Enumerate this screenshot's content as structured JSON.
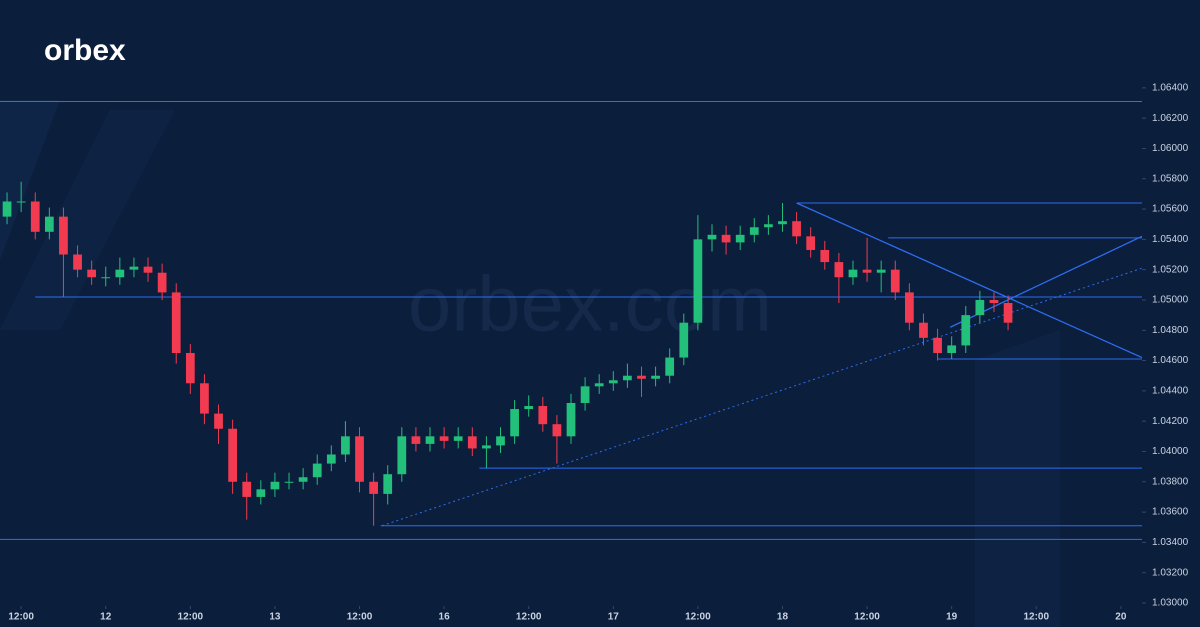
{
  "logo": "orbex",
  "watermark": "orbex.com",
  "chart_data": {
    "type": "candlestick",
    "x": [
      -2,
      0,
      2,
      4,
      6,
      8,
      10,
      12,
      14,
      16,
      18,
      20,
      22,
      24,
      26,
      28,
      30,
      32,
      34,
      36,
      38,
      40,
      42,
      44,
      46,
      48,
      50,
      52,
      54,
      56,
      58,
      60,
      62,
      64,
      66,
      68,
      70,
      72,
      74,
      76,
      78,
      80,
      82,
      84,
      86,
      88,
      90,
      92,
      94,
      96,
      98,
      100,
      102,
      104,
      106,
      108,
      110,
      112,
      114,
      116,
      118,
      120,
      122,
      124,
      126,
      128,
      130,
      132,
      134,
      136,
      138,
      140
    ],
    "open": [
      1.0555,
      1.0565,
      1.0565,
      1.0545,
      1.0555,
      1.053,
      1.052,
      1.0515,
      1.0515,
      1.052,
      1.0522,
      1.0518,
      1.0505,
      1.0465,
      1.0445,
      1.0425,
      1.0415,
      1.038,
      1.037,
      1.0375,
      1.038,
      1.038,
      1.0383,
      1.0392,
      1.0398,
      1.041,
      1.038,
      1.0372,
      1.0385,
      1.041,
      1.0405,
      1.041,
      1.0407,
      1.041,
      1.0402,
      1.0404,
      1.041,
      1.0428,
      1.043,
      1.0418,
      1.041,
      1.0432,
      1.0443,
      1.0445,
      1.0447,
      1.045,
      1.0448,
      1.045,
      1.0462,
      1.0485,
      1.054,
      1.0543,
      1.0538,
      1.0543,
      1.0548,
      1.055,
      1.0552,
      1.0542,
      1.0533,
      1.0525,
      1.0515,
      1.052,
      1.0518,
      1.052,
      1.0505,
      1.0485,
      1.0475,
      1.0465,
      1.047,
      1.049,
      1.05,
      1.0498
    ],
    "high": [
      1.0571,
      1.0578,
      1.0571,
      1.0561,
      1.0561,
      1.0536,
      1.0526,
      1.0522,
      1.0528,
      1.0528,
      1.0528,
      1.0524,
      1.0511,
      1.0471,
      1.0451,
      1.0431,
      1.0421,
      1.0386,
      1.0381,
      1.0386,
      1.0386,
      1.0389,
      1.0398,
      1.0404,
      1.042,
      1.0416,
      1.0386,
      1.0391,
      1.0416,
      1.0416,
      1.0416,
      1.0416,
      1.0416,
      1.0416,
      1.041,
      1.0416,
      1.0434,
      1.0437,
      1.0436,
      1.0424,
      1.0438,
      1.0449,
      1.0451,
      1.0453,
      1.0458,
      1.0456,
      1.0456,
      1.0468,
      1.0491,
      1.0556,
      1.055,
      1.0549,
      1.0549,
      1.0554,
      1.0556,
      1.0564,
      1.0558,
      1.0548,
      1.0539,
      1.0531,
      1.0526,
      1.0541,
      1.0526,
      1.0526,
      1.0511,
      1.0491,
      1.0481,
      1.0476,
      1.0496,
      1.0506,
      1.0505,
      1.0503
    ],
    "low": [
      1.055,
      1.0558,
      1.054,
      1.054,
      1.0502,
      1.0515,
      1.051,
      1.0509,
      1.051,
      1.0515,
      1.0512,
      1.05,
      1.0458,
      1.0438,
      1.0418,
      1.0405,
      1.0372,
      1.0355,
      1.0365,
      1.037,
      1.0375,
      1.0375,
      1.0378,
      1.0387,
      1.0393,
      1.0373,
      1.0351,
      1.0365,
      1.038,
      1.04,
      1.04,
      1.0402,
      1.0402,
      1.0397,
      1.0389,
      1.0399,
      1.0405,
      1.0423,
      1.0413,
      1.0392,
      1.0405,
      1.0427,
      1.0438,
      1.044,
      1.0442,
      1.0436,
      1.0443,
      1.0445,
      1.0457,
      1.048,
      1.0532,
      1.053,
      1.0533,
      1.0538,
      1.0543,
      1.0545,
      1.0537,
      1.0528,
      1.052,
      1.0498,
      1.051,
      1.0512,
      1.0505,
      1.05,
      1.048,
      1.047,
      1.046,
      1.0461,
      1.0465,
      1.0485,
      1.0492,
      1.048
    ],
    "close": [
      1.0565,
      1.0565,
      1.0545,
      1.0555,
      1.053,
      1.052,
      1.0515,
      1.0515,
      1.052,
      1.0522,
      1.0518,
      1.0505,
      1.0465,
      1.0445,
      1.0425,
      1.0415,
      1.038,
      1.037,
      1.0375,
      1.038,
      1.038,
      1.0383,
      1.0392,
      1.0398,
      1.041,
      1.038,
      1.0372,
      1.0385,
      1.041,
      1.0405,
      1.041,
      1.0407,
      1.041,
      1.0402,
      1.0404,
      1.041,
      1.0428,
      1.043,
      1.0418,
      1.041,
      1.0432,
      1.0443,
      1.0445,
      1.0447,
      1.045,
      1.0448,
      1.045,
      1.0462,
      1.0485,
      1.054,
      1.0543,
      1.0538,
      1.0543,
      1.0548,
      1.055,
      1.0552,
      1.0542,
      1.0533,
      1.0525,
      1.0515,
      1.052,
      1.0518,
      1.052,
      1.0505,
      1.0485,
      1.0475,
      1.0465,
      1.047,
      1.049,
      1.05,
      1.0498,
      1.0485
    ],
    "up_color": "#22c07a",
    "down_color": "#f23b50",
    "line_color": "#2e6cf0",
    "xlim": [
      -3,
      159
    ],
    "ylim": [
      1.0298,
      1.0698
    ],
    "xticks": [
      {
        "value": 0,
        "label": "12:00"
      },
      {
        "value": 12,
        "label": "12"
      },
      {
        "value": 24,
        "label": "12:00"
      },
      {
        "value": 36,
        "label": "13"
      },
      {
        "value": 48,
        "label": "12:00"
      },
      {
        "value": 60,
        "label": "16"
      },
      {
        "value": 72,
        "label": "12:00"
      },
      {
        "value": 84,
        "label": "17"
      },
      {
        "value": 96,
        "label": "12:00"
      },
      {
        "value": 108,
        "label": "18"
      },
      {
        "value": 120,
        "label": "12:00"
      },
      {
        "value": 132,
        "label": "19"
      },
      {
        "value": 144,
        "label": "12:00"
      },
      {
        "value": 156,
        "label": "20"
      }
    ],
    "yticks": [
      {
        "value": 1.03,
        "label": "1.03000"
      },
      {
        "value": 1.032,
        "label": "1.03200"
      },
      {
        "value": 1.034,
        "label": "1.03400"
      },
      {
        "value": 1.036,
        "label": "1.03600"
      },
      {
        "value": 1.038,
        "label": "1.03800"
      },
      {
        "value": 1.04,
        "label": "1.04000"
      },
      {
        "value": 1.042,
        "label": "1.04200"
      },
      {
        "value": 1.044,
        "label": "1.04400"
      },
      {
        "value": 1.046,
        "label": "1.04600"
      },
      {
        "value": 1.048,
        "label": "1.04800"
      },
      {
        "value": 1.05,
        "label": "1.05000"
      },
      {
        "value": 1.052,
        "label": "1.05200"
      },
      {
        "value": 1.054,
        "label": "1.05400"
      },
      {
        "value": 1.056,
        "label": "1.05600"
      },
      {
        "value": 1.058,
        "label": "1.05800"
      },
      {
        "value": 1.06,
        "label": "1.06000"
      },
      {
        "value": 1.062,
        "label": "1.06200"
      },
      {
        "value": 1.064,
        "label": "1.06400"
      }
    ],
    "levels": [
      {
        "value": 1.0631,
        "from": -3
      },
      {
        "value": 1.0342,
        "from": -3
      },
      {
        "value": 1.0502,
        "from": 2
      },
      {
        "value": 1.0564,
        "from": 110
      },
      {
        "value": 1.0541,
        "from": 123
      },
      {
        "value": 1.0461,
        "from": 130
      },
      {
        "value": 1.0389,
        "from": 65
      },
      {
        "value": 1.0351,
        "from": 51
      }
    ],
    "trend_lines": [
      {
        "x": [
          110,
          159
        ],
        "y": [
          1.0564,
          1.0462
        ],
        "dashed": false
      },
      {
        "x": [
          131.8,
          159
        ],
        "y": [
          1.0482,
          1.0542
        ],
        "dashed": false
      },
      {
        "x": [
          51.2,
          159
        ],
        "y": [
          1.0351,
          1.0521
        ],
        "dashed": true
      }
    ]
  }
}
